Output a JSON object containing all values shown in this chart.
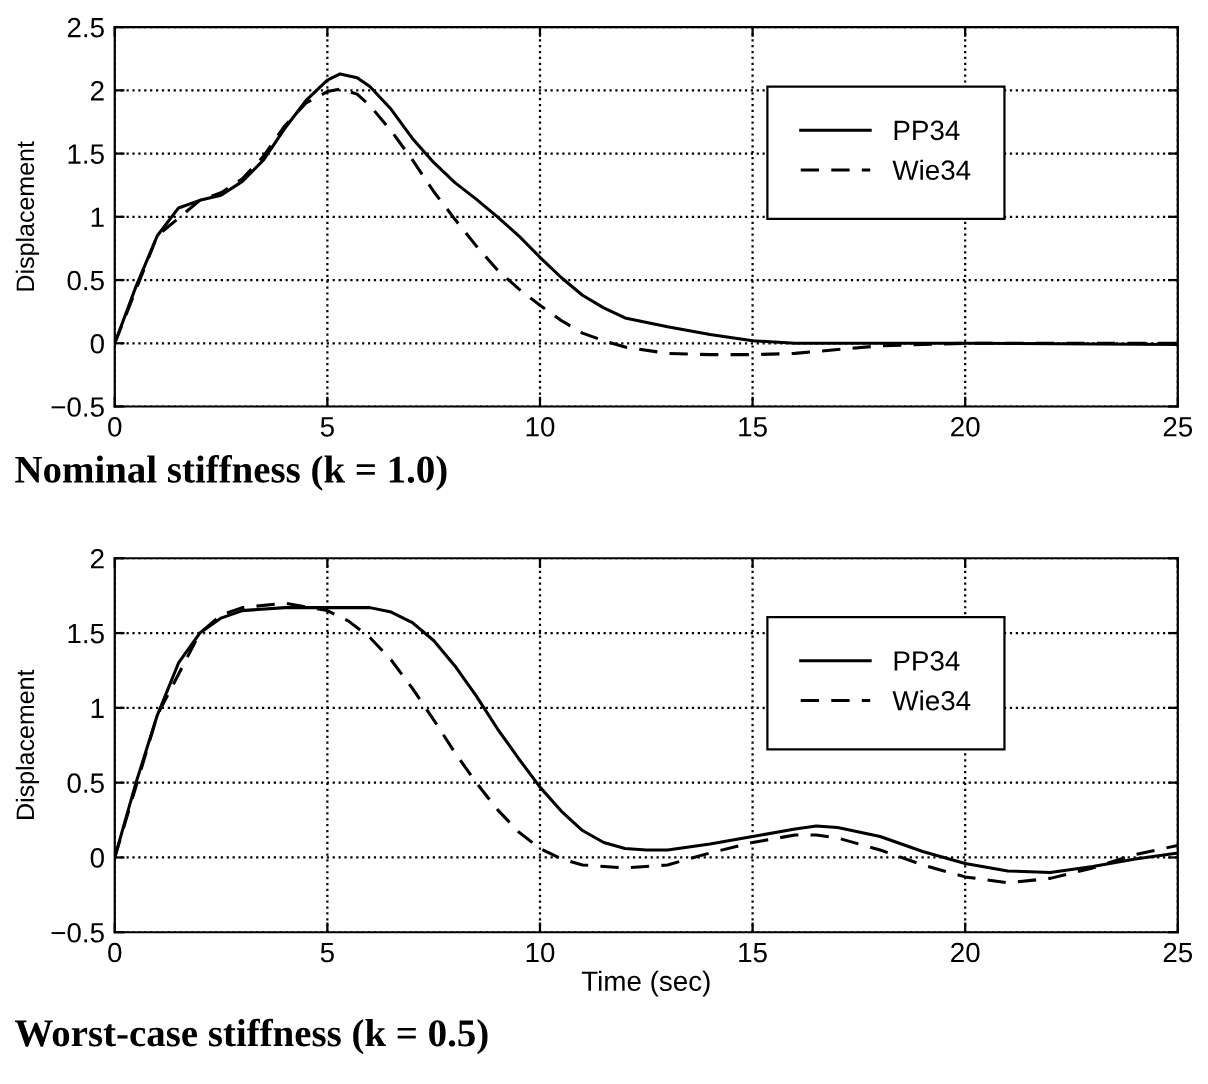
{
  "chart_data": [
    {
      "type": "line",
      "title": "Nominal stiffness (k = 1.0)",
      "ylabel": "Displacement",
      "xlim": [
        0,
        25
      ],
      "xticks": [
        0,
        5,
        10,
        15,
        20,
        25
      ],
      "ylim": [
        -0.5,
        2.5
      ],
      "yticks": [
        -0.5,
        0,
        0.5,
        1,
        1.5,
        2,
        2.5
      ],
      "grid": true,
      "legend": "top right",
      "series": [
        {
          "name": "PP34",
          "color": "#000000",
          "line_style": "solid",
          "x": [
            0,
            0.5,
            1,
            1.5,
            2,
            2.5,
            3,
            3.5,
            4,
            4.5,
            5,
            5.3,
            5.7,
            6,
            6.5,
            7,
            7.5,
            8,
            8.5,
            9,
            9.5,
            10,
            10.5,
            11,
            11.5,
            12,
            13,
            14,
            15,
            16,
            18,
            20,
            25
          ],
          "values": [
            0,
            0.45,
            0.85,
            1.07,
            1.13,
            1.17,
            1.28,
            1.45,
            1.7,
            1.92,
            2.08,
            2.13,
            2.1,
            2.03,
            1.85,
            1.62,
            1.43,
            1.27,
            1.14,
            1.0,
            0.85,
            0.68,
            0.52,
            0.38,
            0.28,
            0.2,
            0.13,
            0.07,
            0.02,
            0.0,
            0.0,
            0.0,
            -0.01
          ]
        },
        {
          "name": "Wie34",
          "color": "#000000",
          "line_style": "dashed",
          "x": [
            0,
            1,
            2,
            2.5,
            3,
            3.5,
            4,
            4.5,
            5,
            5.3,
            5.7,
            6,
            6.5,
            7,
            7.5,
            8,
            8.5,
            9,
            9.5,
            10,
            10.5,
            11,
            11.5,
            12,
            13,
            14,
            15,
            16,
            17,
            18,
            19,
            20,
            25
          ],
          "values": [
            0,
            0.85,
            1.13,
            1.19,
            1.3,
            1.48,
            1.72,
            1.9,
            1.99,
            2.01,
            1.97,
            1.88,
            1.68,
            1.45,
            1.2,
            0.98,
            0.77,
            0.58,
            0.43,
            0.3,
            0.18,
            0.08,
            0.02,
            -0.03,
            -0.08,
            -0.09,
            -0.09,
            -0.08,
            -0.05,
            -0.02,
            -0.01,
            0.0,
            0.0
          ]
        }
      ]
    },
    {
      "type": "line",
      "title": "Worst-case stiffness (k = 0.5)",
      "xlabel": "Time (sec)",
      "ylabel": "Displacement",
      "xlim": [
        0,
        25
      ],
      "xticks": [
        0,
        5,
        10,
        15,
        20,
        25
      ],
      "ylim": [
        -0.5,
        2
      ],
      "yticks": [
        -0.5,
        0,
        0.5,
        1,
        1.5,
        2
      ],
      "grid": true,
      "legend": "top right",
      "series": [
        {
          "name": "PP34",
          "color": "#000000",
          "line_style": "solid",
          "x": [
            0,
            0.5,
            1,
            1.5,
            2,
            2.5,
            3,
            4,
            5,
            6,
            6.5,
            7,
            7.5,
            8,
            8.5,
            9,
            9.5,
            10,
            10.5,
            11,
            11.5,
            12,
            12.5,
            13,
            14,
            15,
            16,
            16.5,
            17,
            18,
            19,
            20,
            21,
            22,
            23,
            24,
            25
          ],
          "values": [
            0,
            0.5,
            0.95,
            1.3,
            1.5,
            1.6,
            1.65,
            1.67,
            1.67,
            1.67,
            1.64,
            1.57,
            1.45,
            1.28,
            1.08,
            0.86,
            0.66,
            0.47,
            0.31,
            0.18,
            0.1,
            0.06,
            0.05,
            0.05,
            0.09,
            0.14,
            0.19,
            0.21,
            0.2,
            0.14,
            0.04,
            -0.04,
            -0.09,
            -0.1,
            -0.06,
            -0.01,
            0.03
          ]
        },
        {
          "name": "Wie34",
          "color": "#000000",
          "line_style": "dashed",
          "x": [
            0,
            1,
            2,
            2.5,
            3,
            4,
            5,
            5.5,
            6,
            6.5,
            7,
            7.5,
            8,
            8.5,
            9,
            9.5,
            10,
            10.5,
            11,
            12,
            13,
            14,
            15,
            16,
            16.5,
            17,
            18,
            19,
            20,
            21,
            22,
            23,
            24,
            25
          ],
          "values": [
            0,
            0.95,
            1.5,
            1.62,
            1.67,
            1.7,
            1.65,
            1.58,
            1.47,
            1.32,
            1.13,
            0.92,
            0.7,
            0.5,
            0.32,
            0.17,
            0.06,
            -0.01,
            -0.05,
            -0.07,
            -0.05,
            0.03,
            0.1,
            0.15,
            0.15,
            0.13,
            0.05,
            -0.05,
            -0.13,
            -0.17,
            -0.14,
            -0.07,
            0.02,
            0.08
          ]
        }
      ]
    }
  ]
}
